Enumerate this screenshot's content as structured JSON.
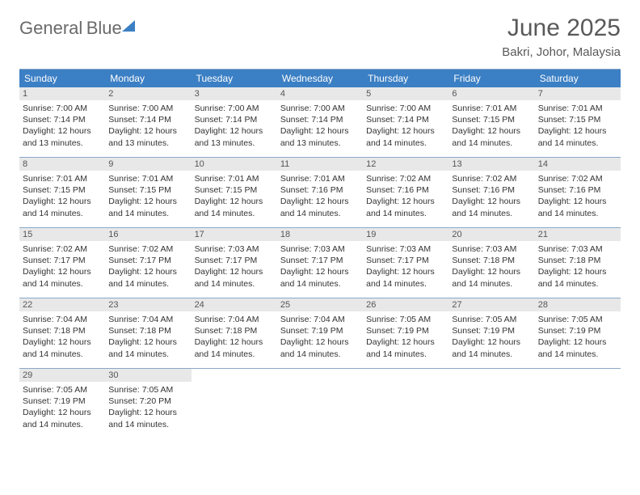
{
  "logo": {
    "line1": "General",
    "line2": "Blue"
  },
  "title": "June 2025",
  "location": "Bakri, Johor, Malaysia",
  "weekday_header_bg": "#3b7fc4",
  "weekday_header_fg": "#ffffff",
  "daynum_bg": "#e8e8e8",
  "border_color": "#8aa9c9",
  "text_color": "#333333",
  "weekdays": [
    "Sunday",
    "Monday",
    "Tuesday",
    "Wednesday",
    "Thursday",
    "Friday",
    "Saturday"
  ],
  "weeks": [
    [
      {
        "n": "1",
        "sr": "7:00 AM",
        "ss": "7:14 PM",
        "dh": "12",
        "dm": "13"
      },
      {
        "n": "2",
        "sr": "7:00 AM",
        "ss": "7:14 PM",
        "dh": "12",
        "dm": "13"
      },
      {
        "n": "3",
        "sr": "7:00 AM",
        "ss": "7:14 PM",
        "dh": "12",
        "dm": "13"
      },
      {
        "n": "4",
        "sr": "7:00 AM",
        "ss": "7:14 PM",
        "dh": "12",
        "dm": "13"
      },
      {
        "n": "5",
        "sr": "7:00 AM",
        "ss": "7:14 PM",
        "dh": "12",
        "dm": "14"
      },
      {
        "n": "6",
        "sr": "7:01 AM",
        "ss": "7:15 PM",
        "dh": "12",
        "dm": "14"
      },
      {
        "n": "7",
        "sr": "7:01 AM",
        "ss": "7:15 PM",
        "dh": "12",
        "dm": "14"
      }
    ],
    [
      {
        "n": "8",
        "sr": "7:01 AM",
        "ss": "7:15 PM",
        "dh": "12",
        "dm": "14"
      },
      {
        "n": "9",
        "sr": "7:01 AM",
        "ss": "7:15 PM",
        "dh": "12",
        "dm": "14"
      },
      {
        "n": "10",
        "sr": "7:01 AM",
        "ss": "7:15 PM",
        "dh": "12",
        "dm": "14"
      },
      {
        "n": "11",
        "sr": "7:01 AM",
        "ss": "7:16 PM",
        "dh": "12",
        "dm": "14"
      },
      {
        "n": "12",
        "sr": "7:02 AM",
        "ss": "7:16 PM",
        "dh": "12",
        "dm": "14"
      },
      {
        "n": "13",
        "sr": "7:02 AM",
        "ss": "7:16 PM",
        "dh": "12",
        "dm": "14"
      },
      {
        "n": "14",
        "sr": "7:02 AM",
        "ss": "7:16 PM",
        "dh": "12",
        "dm": "14"
      }
    ],
    [
      {
        "n": "15",
        "sr": "7:02 AM",
        "ss": "7:17 PM",
        "dh": "12",
        "dm": "14"
      },
      {
        "n": "16",
        "sr": "7:02 AM",
        "ss": "7:17 PM",
        "dh": "12",
        "dm": "14"
      },
      {
        "n": "17",
        "sr": "7:03 AM",
        "ss": "7:17 PM",
        "dh": "12",
        "dm": "14"
      },
      {
        "n": "18",
        "sr": "7:03 AM",
        "ss": "7:17 PM",
        "dh": "12",
        "dm": "14"
      },
      {
        "n": "19",
        "sr": "7:03 AM",
        "ss": "7:17 PM",
        "dh": "12",
        "dm": "14"
      },
      {
        "n": "20",
        "sr": "7:03 AM",
        "ss": "7:18 PM",
        "dh": "12",
        "dm": "14"
      },
      {
        "n": "21",
        "sr": "7:03 AM",
        "ss": "7:18 PM",
        "dh": "12",
        "dm": "14"
      }
    ],
    [
      {
        "n": "22",
        "sr": "7:04 AM",
        "ss": "7:18 PM",
        "dh": "12",
        "dm": "14"
      },
      {
        "n": "23",
        "sr": "7:04 AM",
        "ss": "7:18 PM",
        "dh": "12",
        "dm": "14"
      },
      {
        "n": "24",
        "sr": "7:04 AM",
        "ss": "7:18 PM",
        "dh": "12",
        "dm": "14"
      },
      {
        "n": "25",
        "sr": "7:04 AM",
        "ss": "7:19 PM",
        "dh": "12",
        "dm": "14"
      },
      {
        "n": "26",
        "sr": "7:05 AM",
        "ss": "7:19 PM",
        "dh": "12",
        "dm": "14"
      },
      {
        "n": "27",
        "sr": "7:05 AM",
        "ss": "7:19 PM",
        "dh": "12",
        "dm": "14"
      },
      {
        "n": "28",
        "sr": "7:05 AM",
        "ss": "7:19 PM",
        "dh": "12",
        "dm": "14"
      }
    ],
    [
      {
        "n": "29",
        "sr": "7:05 AM",
        "ss": "7:19 PM",
        "dh": "12",
        "dm": "14"
      },
      {
        "n": "30",
        "sr": "7:05 AM",
        "ss": "7:20 PM",
        "dh": "12",
        "dm": "14"
      },
      null,
      null,
      null,
      null,
      null
    ]
  ]
}
